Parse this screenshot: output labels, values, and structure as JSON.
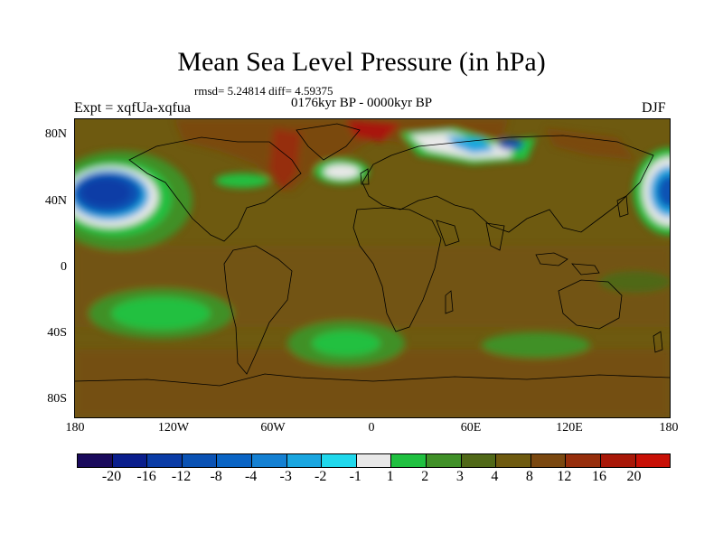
{
  "header": {
    "title": "Mean Sea Level Pressure (in hPa)",
    "stats": "rmsd= 5.24814 diff= 4.59375",
    "period": "0176kyr BP - 0000kyr BP",
    "experiment": "Expt = xqfUa-xqfua",
    "season": "DJF"
  },
  "axes": {
    "y_ticks": [
      "80N",
      "40N",
      "0",
      "40S",
      "80S"
    ],
    "x_ticks": [
      "180",
      "120W",
      "60W",
      "0",
      "60E",
      "120E",
      "180"
    ]
  },
  "colorbar": {
    "colors": [
      "#1a0a5c",
      "#0a1e8c",
      "#0a3ca6",
      "#0a52b4",
      "#0a64c4",
      "#1480d2",
      "#1aa6e0",
      "#20d8ec",
      "#e8e8e8",
      "#20c040",
      "#409028",
      "#506818",
      "#6e5a10",
      "#7a4810",
      "#962e0c",
      "#a81808",
      "#c81006"
    ],
    "labels": [
      "-20",
      "-16",
      "-12",
      "-8",
      "-4",
      "-3",
      "-2",
      "-1",
      "1",
      "2",
      "3",
      "4",
      "8",
      "12",
      "16",
      "20"
    ]
  }
}
